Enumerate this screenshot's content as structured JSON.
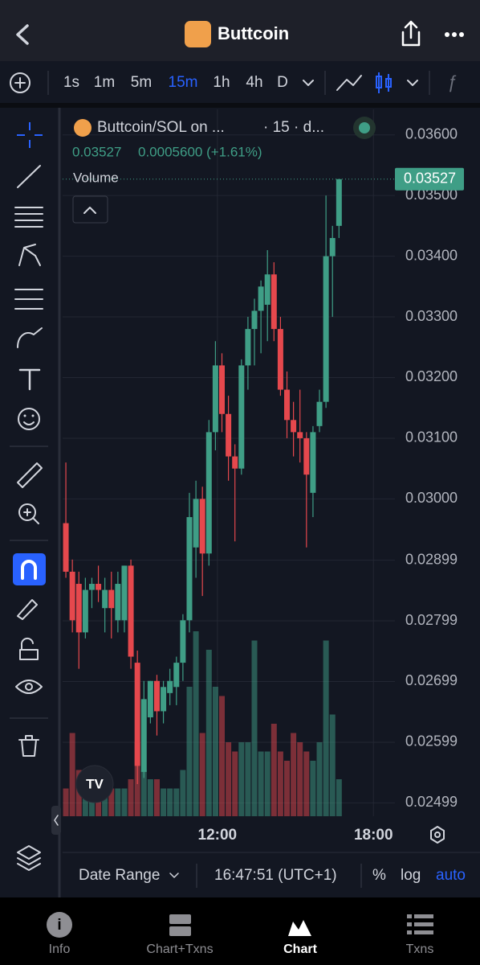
{
  "header": {
    "title": "Buttcoin"
  },
  "toolbar": {
    "intervals": [
      "1s",
      "1m",
      "5m",
      "15m",
      "1h",
      "4h",
      "D"
    ],
    "selected": 3
  },
  "legend": {
    "symbol": "Buttcoin/SOL on ...",
    "interval": "· 15 · d...",
    "price": "0.03527",
    "change": "0.0005600 (+1.61%)",
    "volume": "Volume"
  },
  "chart_data": {
    "type": "candlestick",
    "open": [
      0.0296,
      0.0288,
      0.0286,
      0.0278,
      0.0285,
      0.0286,
      0.0282,
      0.0285,
      0.028,
      0.028,
      0.0289,
      0.0273,
      0.0255,
      0.0264,
      0.027,
      0.0265,
      0.0268,
      0.0269,
      0.0273,
      0.028,
      0.0292,
      0.03,
      0.0291,
      0.0311,
      0.0322,
      0.0314,
      0.0307,
      0.0305,
      0.0322,
      0.0328,
      0.0331,
      0.0332,
      0.0337,
      0.0328,
      0.0318,
      0.0313,
      0.0311,
      0.031,
      0.0301,
      0.0312,
      0.0316,
      0.034,
      0.0345
    ],
    "high": [
      0.0306,
      0.029,
      0.0288,
      0.0287,
      0.0287,
      0.0289,
      0.0287,
      0.0288,
      0.0288,
      0.0289,
      0.029,
      0.0275,
      0.027,
      0.027,
      0.0271,
      0.027,
      0.0272,
      0.0274,
      0.0281,
      0.0301,
      0.0303,
      0.0302,
      0.0313,
      0.0326,
      0.0324,
      0.0317,
      0.0309,
      0.0323,
      0.033,
      0.0333,
      0.0336,
      0.0341,
      0.0339,
      0.033,
      0.0321,
      0.0316,
      0.0318,
      0.0311,
      0.0312,
      0.0318,
      0.035,
      0.0345,
      0.03527
    ],
    "low": [
      0.0287,
      0.0278,
      0.0272,
      0.0277,
      0.0282,
      0.0283,
      0.0278,
      0.0277,
      0.0278,
      0.0278,
      0.0272,
      0.0253,
      0.0254,
      0.0263,
      0.0261,
      0.0263,
      0.0266,
      0.0266,
      0.027,
      0.0278,
      0.0287,
      0.0284,
      0.0289,
      0.0308,
      0.0311,
      0.0303,
      0.0293,
      0.0304,
      0.0318,
      0.0322,
      0.0324,
      0.0326,
      0.0326,
      0.0317,
      0.031,
      0.0307,
      0.0306,
      0.0292,
      0.0297,
      0.0311,
      0.0315,
      0.033,
      0.0343
    ],
    "close": [
      0.0288,
      0.028,
      0.0278,
      0.0285,
      0.0286,
      0.0285,
      0.0285,
      0.0282,
      0.0286,
      0.0289,
      0.0274,
      0.0256,
      0.0267,
      0.027,
      0.0265,
      0.0269,
      0.027,
      0.0273,
      0.028,
      0.0297,
      0.03,
      0.0291,
      0.0311,
      0.0322,
      0.0314,
      0.0307,
      0.0305,
      0.0322,
      0.0328,
      0.0331,
      0.0335,
      0.0337,
      0.0328,
      0.0318,
      0.0313,
      0.0311,
      0.031,
      0.0304,
      0.0311,
      0.0316,
      0.034,
      0.0343,
      0.03527
    ],
    "volume": [
      30,
      90,
      50,
      30,
      30,
      30,
      40,
      30,
      30,
      30,
      40,
      80,
      50,
      40,
      40,
      30,
      30,
      30,
      50,
      140,
      200,
      90,
      180,
      140,
      130,
      80,
      70,
      80,
      80,
      190,
      70,
      70,
      100,
      70,
      60,
      90,
      80,
      70,
      60,
      80,
      190,
      110,
      40
    ],
    "up_color": "#3f9e86",
    "down_color": "#e5484d",
    "ylim": [
      0.02477,
      0.03642
    ],
    "yticks": [
      {
        "value": 0.036,
        "label": "0.03600"
      },
      {
        "value": 0.035,
        "label": "0.03500"
      },
      {
        "value": 0.034,
        "label": "0.03400"
      },
      {
        "value": 0.033,
        "label": "0.03300"
      },
      {
        "value": 0.032,
        "label": "0.03200"
      },
      {
        "value": 0.031,
        "label": "0.03100"
      },
      {
        "value": 0.03,
        "label": "0.03000"
      },
      0.02899,
      0.02799,
      0.02699,
      0.02599,
      0.02499
    ],
    "xlim": [
      -0.5,
      50.6
    ],
    "xticks": [
      {
        "value": 23.3,
        "label": "12:00"
      },
      {
        "value": 47.3,
        "label": "18:00"
      }
    ],
    "last_label": "0.03527",
    "grid": true
  },
  "footer": {
    "date_range": "Date Range",
    "time": "16:47:51 (UTC+1)",
    "percent": "%",
    "log": "log",
    "auto": "auto"
  },
  "nav": [
    "Info",
    "Chart+Txns",
    "Chart",
    "Txns"
  ]
}
